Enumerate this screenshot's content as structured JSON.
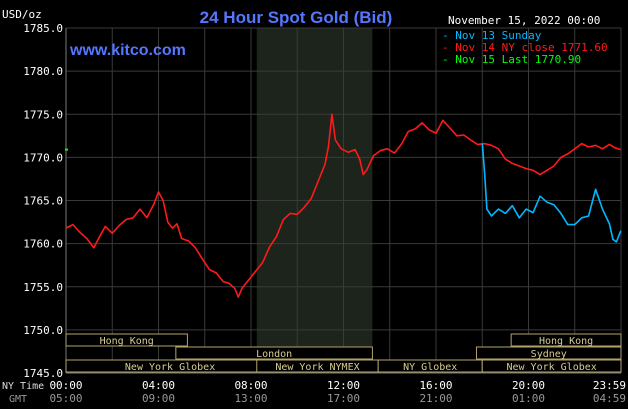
{
  "header": {
    "unit": "USD/oz",
    "title": "24 Hour Spot Gold (Bid)",
    "site": "www.kitco.com",
    "date": "November 15, 2022 00:00"
  },
  "legend": [
    {
      "label": "Nov 13 Sunday",
      "color": "#00b8ff"
    },
    {
      "label": "Nov 14 NY close 1771.60",
      "color": "#ff1a1a"
    },
    {
      "label": "Nov 15 Last 1770.90",
      "color": "#00ff00"
    }
  ],
  "colors": {
    "background": "#000000",
    "grid": "#3a3a3a",
    "axis_text": "#ffffff",
    "title": "#5577ff",
    "highlight": "#1c241c",
    "session_border": "#b3a36a",
    "session_text": "#d8cc90"
  },
  "axis": {
    "y_ticks": [
      "1785.0",
      "1780.0",
      "1775.0",
      "1770.0",
      "1765.0",
      "1760.0",
      "1755.0",
      "1750.0",
      "1745.0"
    ],
    "ny_label": "NY Time",
    "gmt_label": "GMT",
    "ny_ticks": [
      "00:00",
      "04:00",
      "08:00",
      "12:00",
      "16:00",
      "20:00",
      "23:59"
    ],
    "gmt_ticks": [
      "05:00",
      "09:00",
      "13:00",
      "17:00",
      "21:00",
      "01:00",
      "04:59"
    ]
  },
  "sessions": [
    {
      "label": "Hong Kong",
      "start": 0,
      "end": 5.25,
      "row": 0
    },
    {
      "label": "London",
      "start": 4.75,
      "end": 13.25,
      "row": 1
    },
    {
      "label": "New York Globex",
      "start": 0,
      "end": 9.0,
      "row": 2
    },
    {
      "label": "New York NYMEX",
      "start": 8.25,
      "end": 13.5,
      "row": 2
    },
    {
      "label": "NY Globex",
      "start": 13.5,
      "end": 18.0,
      "row": 2
    },
    {
      "label": "Hong Kong",
      "start": 19.25,
      "end": 24.0,
      "row": 0
    },
    {
      "label": "Sydney",
      "start": 17.75,
      "end": 24.0,
      "row": 1
    },
    {
      "label": "New York Globex",
      "start": 18.0,
      "end": 24.0,
      "row": 2
    }
  ],
  "chart_data": {
    "type": "line",
    "ylim": [
      1745.0,
      1785.0
    ],
    "xlim": [
      0,
      24
    ],
    "highlight_hours": [
      8.25,
      13.25
    ],
    "series": [
      {
        "name": "Nov 14 NY close 1771.60",
        "color": "#ff1a1a",
        "points": [
          [
            0.0,
            1761.8
          ],
          [
            0.3,
            1762.2
          ],
          [
            0.6,
            1761.3
          ],
          [
            0.9,
            1760.6
          ],
          [
            1.2,
            1759.5
          ],
          [
            1.45,
            1760.8
          ],
          [
            1.7,
            1762.0
          ],
          [
            2.0,
            1761.2
          ],
          [
            2.3,
            1762.1
          ],
          [
            2.6,
            1762.8
          ],
          [
            2.9,
            1763.0
          ],
          [
            3.2,
            1764.0
          ],
          [
            3.5,
            1763.0
          ],
          [
            3.8,
            1764.6
          ],
          [
            4.0,
            1766.0
          ],
          [
            4.2,
            1765.0
          ],
          [
            4.4,
            1762.5
          ],
          [
            4.6,
            1761.8
          ],
          [
            4.8,
            1762.3
          ],
          [
            5.0,
            1760.6
          ],
          [
            5.3,
            1760.3
          ],
          [
            5.6,
            1759.5
          ],
          [
            5.9,
            1758.2
          ],
          [
            6.2,
            1757.0
          ],
          [
            6.5,
            1756.6
          ],
          [
            6.8,
            1755.6
          ],
          [
            7.05,
            1755.4
          ],
          [
            7.3,
            1754.8
          ],
          [
            7.45,
            1753.8
          ],
          [
            7.6,
            1754.8
          ],
          [
            7.9,
            1755.8
          ],
          [
            8.2,
            1756.8
          ],
          [
            8.5,
            1757.8
          ],
          [
            8.8,
            1759.6
          ],
          [
            9.1,
            1760.8
          ],
          [
            9.4,
            1762.8
          ],
          [
            9.7,
            1763.5
          ],
          [
            10.0,
            1763.4
          ],
          [
            10.3,
            1764.2
          ],
          [
            10.6,
            1765.2
          ],
          [
            10.9,
            1767.2
          ],
          [
            11.2,
            1769.2
          ],
          [
            11.35,
            1771.3
          ],
          [
            11.5,
            1775.0
          ],
          [
            11.65,
            1772.0
          ],
          [
            11.9,
            1771.0
          ],
          [
            12.2,
            1770.6
          ],
          [
            12.5,
            1770.9
          ],
          [
            12.7,
            1769.8
          ],
          [
            12.85,
            1768.0
          ],
          [
            13.0,
            1768.5
          ],
          [
            13.3,
            1770.2
          ],
          [
            13.6,
            1770.8
          ],
          [
            13.9,
            1771.0
          ],
          [
            14.2,
            1770.5
          ],
          [
            14.5,
            1771.5
          ],
          [
            14.8,
            1773.0
          ],
          [
            15.1,
            1773.3
          ],
          [
            15.4,
            1774.0
          ],
          [
            15.7,
            1773.2
          ],
          [
            16.0,
            1772.8
          ],
          [
            16.3,
            1774.3
          ],
          [
            16.6,
            1773.4
          ],
          [
            16.9,
            1772.5
          ],
          [
            17.2,
            1772.6
          ],
          [
            17.5,
            1772.0
          ],
          [
            17.8,
            1771.5
          ],
          [
            18.1,
            1771.6
          ],
          [
            18.4,
            1771.4
          ],
          [
            18.7,
            1771.0
          ],
          [
            19.0,
            1769.8
          ],
          [
            19.3,
            1769.3
          ],
          [
            19.6,
            1769.0
          ],
          [
            19.9,
            1768.7
          ],
          [
            20.2,
            1768.5
          ],
          [
            20.5,
            1768.0
          ],
          [
            20.8,
            1768.5
          ],
          [
            21.1,
            1769.0
          ],
          [
            21.4,
            1770.0
          ],
          [
            21.7,
            1770.4
          ],
          [
            22.0,
            1771.0
          ],
          [
            22.3,
            1771.6
          ],
          [
            22.6,
            1771.2
          ],
          [
            22.9,
            1771.4
          ],
          [
            23.2,
            1771.0
          ],
          [
            23.5,
            1771.5
          ],
          [
            23.75,
            1771.1
          ],
          [
            23.99,
            1770.9
          ]
        ]
      },
      {
        "name": "Nov 13 Sunday",
        "color": "#00b8ff",
        "points": [
          [
            18.0,
            1771.6
          ],
          [
            18.1,
            1768.2
          ],
          [
            18.2,
            1764.0
          ],
          [
            18.4,
            1763.2
          ],
          [
            18.7,
            1764.0
          ],
          [
            19.0,
            1763.5
          ],
          [
            19.3,
            1764.4
          ],
          [
            19.6,
            1763.0
          ],
          [
            19.9,
            1764.0
          ],
          [
            20.2,
            1763.6
          ],
          [
            20.5,
            1765.5
          ],
          [
            20.8,
            1764.8
          ],
          [
            21.1,
            1764.5
          ],
          [
            21.4,
            1763.5
          ],
          [
            21.7,
            1762.2
          ],
          [
            22.0,
            1762.2
          ],
          [
            22.3,
            1763.0
          ],
          [
            22.6,
            1763.2
          ],
          [
            22.9,
            1766.3
          ],
          [
            23.2,
            1764.0
          ],
          [
            23.5,
            1762.3
          ],
          [
            23.65,
            1760.5
          ],
          [
            23.8,
            1760.2
          ],
          [
            23.99,
            1761.5
          ]
        ]
      },
      {
        "name": "Nov 15 Last 1770.90",
        "color": "#00ff00",
        "points": [
          [
            0.0,
            1770.9
          ]
        ]
      }
    ]
  }
}
